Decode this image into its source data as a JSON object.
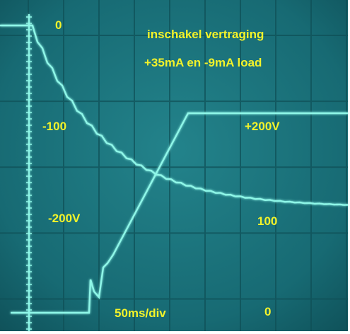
{
  "annotations": [
    {
      "text": "0"
    },
    {
      "text": "inschakel vertraging"
    },
    {
      "text": "+35mA en -9mA  load"
    },
    {
      "text": "-100"
    },
    {
      "text": "+200V"
    },
    {
      "text": "-200V"
    },
    {
      "text": "100"
    },
    {
      "text": "50ms/div"
    },
    {
      "text": "0"
    }
  ]
}
